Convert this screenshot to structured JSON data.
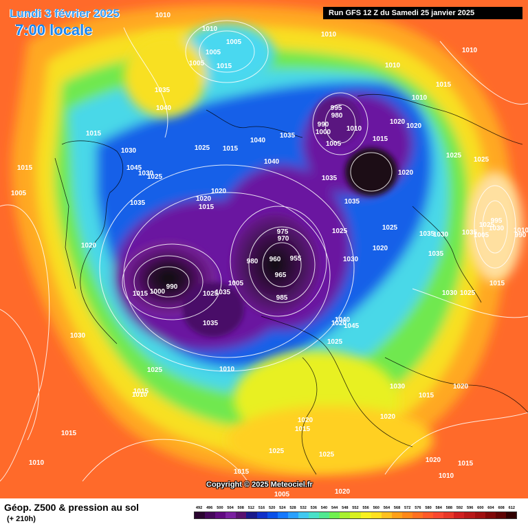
{
  "header": {
    "date_label": "Lundi 3 février 2025",
    "time_label": "7:00 locale",
    "run_label": "Run GFS 12 Z du Samedi 25 janvier 2025"
  },
  "footer": {
    "title": "Géop. Z500 & pression au sol",
    "subtitle": "(+ 210h)",
    "copyright": "Copyright © 2025 Meteociel.fr"
  },
  "legend": {
    "labels": [
      "492",
      "496",
      "500",
      "504",
      "508",
      "512",
      "516",
      "520",
      "524",
      "528",
      "532",
      "536",
      "540",
      "544",
      "548",
      "552",
      "556",
      "560",
      "564",
      "568",
      "572",
      "576",
      "580",
      "584",
      "588",
      "592",
      "596",
      "600",
      "604",
      "608",
      "612"
    ],
    "colors": [
      "#2a0530",
      "#45075a",
      "#600a80",
      "#7a20a0",
      "#5a1270",
      "#1a1a8a",
      "#1030c8",
      "#0a50e8",
      "#1478ff",
      "#2aa0ff",
      "#40c8f0",
      "#48e0c8",
      "#50e890",
      "#70f050",
      "#a8f030",
      "#d8f020",
      "#f8f020",
      "#ffe020",
      "#ffc020",
      "#ffa018",
      "#ff8818",
      "#ff7020",
      "#ff5a28",
      "#f84830",
      "#e83828",
      "#d02020",
      "#b81818",
      "#a01010",
      "#800808",
      "#600404",
      "#300000"
    ]
  },
  "map": {
    "colors": {
      "ocean_warm": "#ff6a2a",
      "low_center": "#1a1018",
      "low_purple": "#5e1278",
      "blue": "#1458e8",
      "cyan": "#4ad2f0",
      "green": "#60e860",
      "yellow": "#f0f020",
      "orange": "#ffb020"
    },
    "pressure_labels": [
      "1010",
      "1010",
      "1005",
      "1005",
      "1005",
      "1015",
      "1010",
      "1010",
      "1015",
      "1010",
      "1010",
      "1035",
      "1040",
      "1015",
      "1030",
      "1025",
      "1015",
      "1040",
      "1035",
      "1015",
      "1045",
      "1030",
      "1025",
      "1035",
      "995",
      "980",
      "990",
      "1000",
      "1010",
      "1005",
      "1015",
      "1020",
      "1020",
      "1025",
      "1025",
      "1040",
      "1035",
      "1035",
      "1020",
      "1035",
      "1020",
      "1020",
      "1015",
      "1005",
      "1025",
      "1025",
      "1030",
      "1020",
      "1035",
      "1025",
      "1030",
      "1035",
      "995",
      "990",
      "1005",
      "1010",
      "1000",
      "990",
      "1015",
      "975",
      "970",
      "980",
      "960",
      "955",
      "965",
      "985",
      "1005",
      "1035",
      "1025",
      "1035",
      "1020",
      "1030",
      "1025",
      "1020",
      "1030",
      "1040",
      "1045",
      "1015",
      "1030",
      "1025",
      "1010",
      "1025",
      "1015",
      "1010",
      "1015",
      "1010",
      "1020",
      "1015",
      "1025",
      "1025",
      "1030",
      "1020",
      "1020",
      "1015",
      "1010",
      "1015",
      "1020",
      "1015",
      "1020",
      "1005"
    ]
  }
}
